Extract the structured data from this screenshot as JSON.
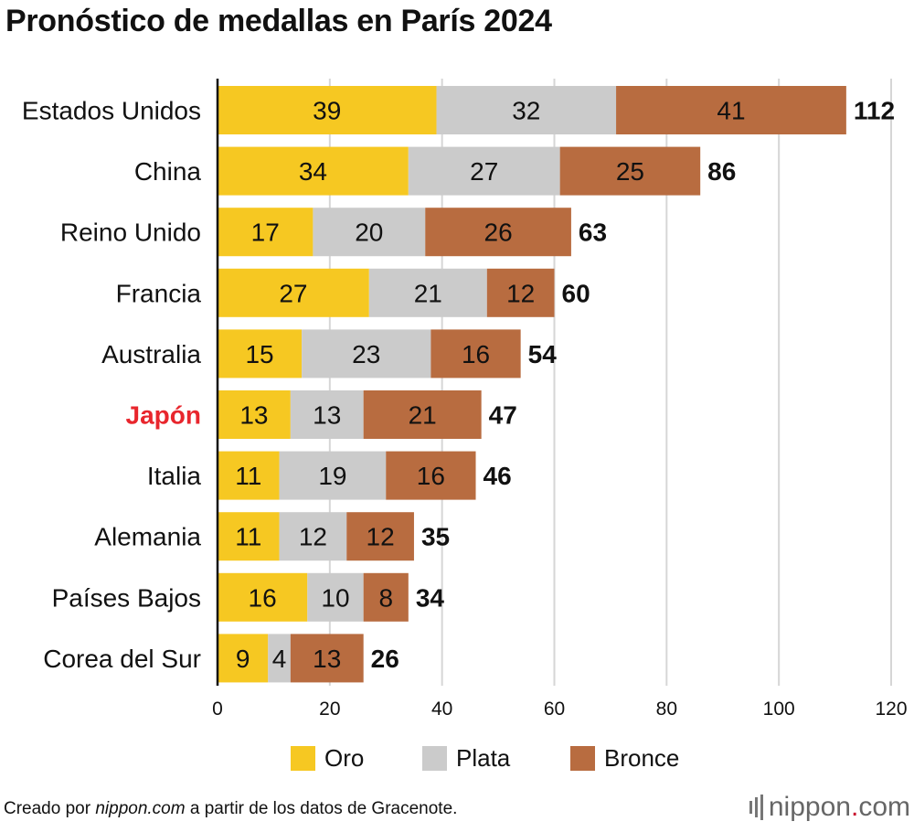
{
  "title": "Pronóstico de medallas en París 2024",
  "colors": {
    "oro": "#f6c822",
    "plata": "#cbcbcb",
    "bronce": "#b86c40",
    "highlight": "#e8262d",
    "grid": "#d6d6d6",
    "axis": "#111111"
  },
  "chart_data": {
    "type": "bar",
    "orientation": "horizontal",
    "stacked": true,
    "title": "Pronóstico de medallas en París 2024",
    "categories": [
      "Estados Unidos",
      "China",
      "Reino Unido",
      "Francia",
      "Australia",
      "Japón",
      "Italia",
      "Alemania",
      "Países Bajos",
      "Corea del Sur"
    ],
    "highlighted_category": "Japón",
    "series": [
      {
        "name": "Oro",
        "values": [
          39,
          34,
          17,
          27,
          15,
          13,
          11,
          11,
          16,
          9
        ]
      },
      {
        "name": "Plata",
        "values": [
          32,
          27,
          20,
          21,
          23,
          13,
          19,
          12,
          10,
          4
        ]
      },
      {
        "name": "Bronce",
        "values": [
          41,
          25,
          26,
          12,
          16,
          21,
          16,
          12,
          8,
          13
        ]
      }
    ],
    "totals": [
      112,
      86,
      63,
      60,
      54,
      47,
      46,
      35,
      34,
      26
    ],
    "xlim": [
      0,
      120
    ],
    "xticks": [
      0,
      20,
      40,
      60,
      80,
      100,
      120
    ],
    "xlabel": "",
    "ylabel": "",
    "grid": true,
    "legend": [
      "Oro",
      "Plata",
      "Bronce"
    ],
    "legend_position": "bottom-center"
  },
  "footer": {
    "prefix": "Creado por ",
    "source": "nippon.com",
    "suffix": " a partir de los datos de Gracenote."
  },
  "logo": {
    "name": "nippon",
    "dot": ".",
    "tld": "com"
  }
}
